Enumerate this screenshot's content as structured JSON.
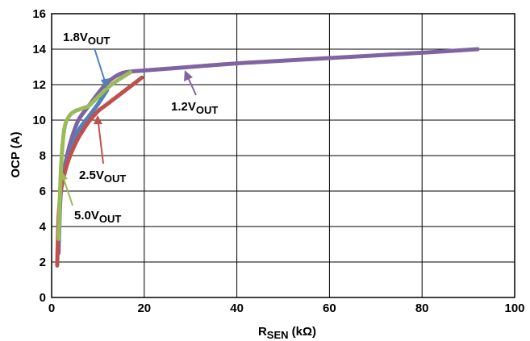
{
  "chart_data": {
    "type": "line",
    "xlabel": {
      "main": "R",
      "sub": "SEN",
      "rest": " (kΩ)"
    },
    "ylabel": "OCP (A)",
    "xlim": [
      0,
      100
    ],
    "ylim": [
      0,
      16
    ],
    "xticks": [
      "0",
      "20",
      "40",
      "60",
      "80",
      "100"
    ],
    "yticks": [
      "0",
      "2",
      "4",
      "6",
      "8",
      "10",
      "12",
      "14",
      "16"
    ],
    "grid": true,
    "series": [
      {
        "name": "1.2V_OUT",
        "color": "#8064a2",
        "x": [
          1.5,
          2,
          3,
          4,
          5,
          6,
          8,
          10,
          12,
          14,
          16,
          20,
          30,
          40,
          50,
          60,
          70,
          80,
          92
        ],
        "y": [
          2.5,
          6.0,
          7.6,
          8.7,
          9.5,
          10.1,
          10.8,
          11.5,
          12.1,
          12.5,
          12.7,
          12.8,
          13.0,
          13.2,
          13.35,
          13.5,
          13.65,
          13.8,
          14.0
        ]
      },
      {
        "name": "1.8V_OUT",
        "color": "#4f81bd",
        "x": [
          1.5,
          2,
          3,
          4,
          5,
          6,
          8,
          10,
          12
        ],
        "y": [
          3.0,
          6.2,
          7.3,
          8.2,
          8.9,
          9.5,
          10.2,
          10.9,
          11.7
        ]
      },
      {
        "name": "2.5V_OUT",
        "color": "#c0504d",
        "x": [
          1.2,
          1.5,
          2,
          3,
          4,
          5,
          6,
          8,
          10,
          12,
          14,
          16,
          19.5
        ],
        "y": [
          1.8,
          4.5,
          6.0,
          7.2,
          8.0,
          8.6,
          9.1,
          9.9,
          10.5,
          10.9,
          11.3,
          11.7,
          12.4
        ]
      },
      {
        "name": "5.0V_OUT",
        "color": "#9bbb59",
        "x": [
          1.5,
          2,
          2.5,
          3,
          4,
          5,
          6,
          7,
          8,
          10,
          12,
          14,
          17
        ],
        "y": [
          3.3,
          7.2,
          9.0,
          9.8,
          10.3,
          10.5,
          10.6,
          10.7,
          10.8,
          11.3,
          11.8,
          12.2,
          12.7
        ]
      }
    ],
    "annotations": [
      {
        "main": "1.8V",
        "sub": "OUT",
        "series": "1.8V_OUT"
      },
      {
        "main": "1.2V",
        "sub": "OUT",
        "series": "1.2V_OUT"
      },
      {
        "main": "2.5V",
        "sub": "OUT",
        "series": "2.5V_OUT"
      },
      {
        "main": "5.0V",
        "sub": "OUT",
        "series": "5.0V_OUT"
      }
    ]
  }
}
